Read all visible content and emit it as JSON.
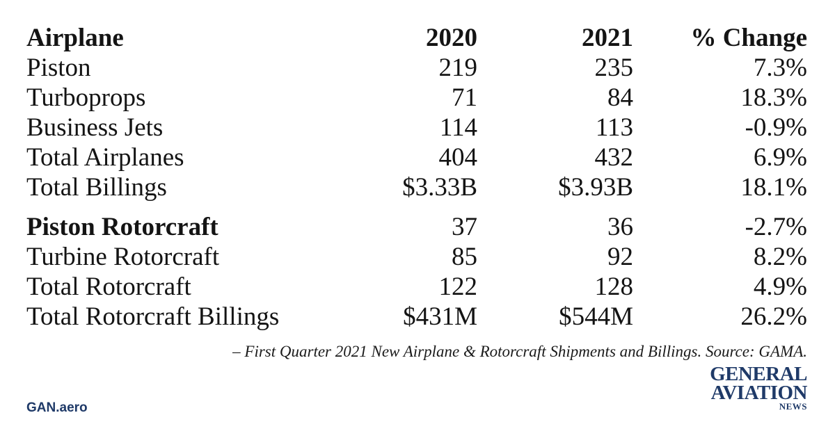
{
  "table": {
    "header": {
      "label": "Airplane",
      "y2020": "2020",
      "y2021": "2021",
      "change": "% Change"
    },
    "airplane_rows": [
      {
        "label": "Piston",
        "y2020": "219",
        "y2021": "235",
        "change": "7.3%"
      },
      {
        "label": "Turboprops",
        "y2020": "71",
        "y2021": "84",
        "change": "18.3%"
      },
      {
        "label": "Business Jets",
        "y2020": "114",
        "y2021": "113",
        "change": "-0.9%"
      },
      {
        "label": "Total Airplanes",
        "y2020": "404",
        "y2021": "432",
        "change": "6.9%"
      },
      {
        "label": "Total Billings",
        "y2020": "$3.33B",
        "y2021": "$3.93B",
        "change": "18.1%"
      }
    ],
    "rotorcraft_rows": [
      {
        "label": "Piston Rotorcraft",
        "y2020": "37",
        "y2021": "36",
        "change": "-2.7%"
      },
      {
        "label": "Turbine Rotorcraft",
        "y2020": "85",
        "y2021": "92",
        "change": "8.2%"
      },
      {
        "label": "Total Rotorcraft",
        "y2020": "122",
        "y2021": "128",
        "change": "4.9%"
      },
      {
        "label": "Total Rotorcraft Billings",
        "y2020": "$431M",
        "y2021": "$544M",
        "change": "26.2%"
      }
    ]
  },
  "caption": "– First Quarter 2021 New Airplane & Rotorcraft Shipments and Billings. Source: GAMA.",
  "footer": {
    "site": "GAN.aero",
    "logo_line1": "GENERAL",
    "logo_line2": "AVIATION",
    "logo_line3": "NEWS"
  },
  "colors": {
    "text": "#141414",
    "brand": "#1f3a68",
    "background": "#ffffff"
  }
}
